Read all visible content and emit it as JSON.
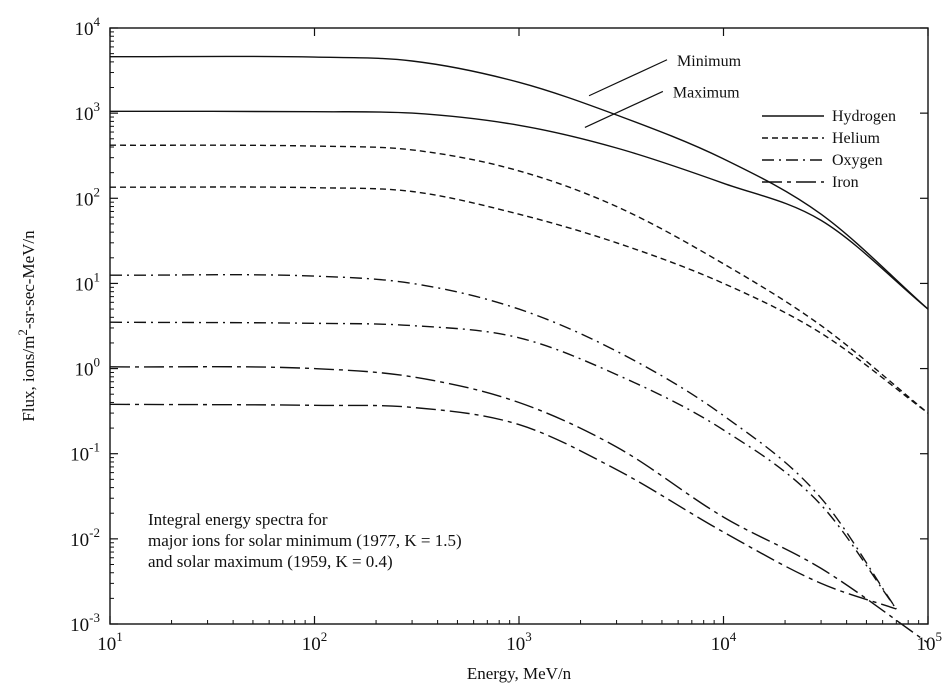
{
  "chart_data": {
    "type": "line",
    "xlabel": "Energy, MeV/n",
    "ylabel": "Flux, ions/m",
    "ylabel_sup": "2",
    "ylabel_rest": "-sr-sec-MeV/n",
    "xscale": "log",
    "yscale": "log",
    "xlim": [
      10,
      100000
    ],
    "ylim": [
      0.001,
      10000
    ],
    "grid": false,
    "xticks": [
      {
        "value": 10,
        "base": "10",
        "exp": "1"
      },
      {
        "value": 100,
        "base": "10",
        "exp": "2"
      },
      {
        "value": 1000,
        "base": "10",
        "exp": "3"
      },
      {
        "value": 10000,
        "base": "10",
        "exp": "4"
      },
      {
        "value": 100000,
        "base": "10",
        "exp": "5"
      }
    ],
    "yticks": [
      {
        "value": 0.001,
        "base": "10",
        "exp": "-3"
      },
      {
        "value": 0.01,
        "base": "10",
        "exp": "-2"
      },
      {
        "value": 0.1,
        "base": "10",
        "exp": "-1"
      },
      {
        "value": 1,
        "base": "10",
        "exp": "0"
      },
      {
        "value": 10,
        "base": "10",
        "exp": "1"
      },
      {
        "value": 100,
        "base": "10",
        "exp": "2"
      },
      {
        "value": 1000,
        "base": "10",
        "exp": "3"
      },
      {
        "value": 10000,
        "base": "10",
        "exp": "4"
      }
    ],
    "legend": {
      "placement": "top-right",
      "entries": [
        {
          "name": "Hydrogen",
          "dash": "none"
        },
        {
          "name": "Helium",
          "dash": "6,4"
        },
        {
          "name": "Oxygen",
          "dash": "12,5,2,5"
        },
        {
          "name": "Iron",
          "dash": "20,5,4,5"
        }
      ]
    },
    "series": [
      {
        "name": "Hydrogen",
        "condition": "Minimum",
        "dash": "none",
        "x": [
          10,
          100,
          300,
          1000,
          3000,
          10000,
          30000,
          100000
        ],
        "y": [
          4600,
          4550,
          4100,
          2300,
          950,
          290,
          65,
          5
        ]
      },
      {
        "name": "Hydrogen",
        "condition": "Maximum",
        "dash": "none",
        "x": [
          10,
          100,
          300,
          1000,
          3000,
          10000,
          30000,
          100000
        ],
        "y": [
          1050,
          1040,
          1000,
          720,
          390,
          150,
          55,
          5
        ]
      },
      {
        "name": "Helium",
        "condition": "Minimum",
        "dash": "6,4",
        "x": [
          10,
          100,
          300,
          1000,
          3000,
          10000,
          30000,
          100000
        ],
        "y": [
          420,
          410,
          370,
          210,
          80,
          17,
          3.2,
          0.3
        ]
      },
      {
        "name": "Helium",
        "condition": "Maximum",
        "dash": "6,4",
        "x": [
          10,
          100,
          300,
          1000,
          3000,
          10000,
          30000,
          100000
        ],
        "y": [
          135,
          133,
          120,
          65,
          30,
          10,
          2.6,
          0.3
        ]
      },
      {
        "name": "Oxygen",
        "condition": "Minimum",
        "dash": "12,5,2,5",
        "x": [
          10,
          100,
          300,
          1000,
          3000,
          10000,
          30000,
          70000
        ],
        "y": [
          12.5,
          12.2,
          10,
          5,
          1.6,
          0.28,
          0.03,
          0.0015
        ]
      },
      {
        "name": "Oxygen",
        "condition": "Maximum",
        "dash": "12,5,2,5",
        "x": [
          10,
          100,
          300,
          1000,
          3000,
          10000,
          30000,
          70000
        ],
        "y": [
          3.5,
          3.4,
          3.2,
          2.3,
          0.85,
          0.19,
          0.025,
          0.0015
        ]
      },
      {
        "name": "Iron",
        "condition": "Minimum",
        "dash": "20,5,4,5",
        "x": [
          10,
          100,
          300,
          1000,
          3000,
          10000,
          30000,
          100000
        ],
        "y": [
          1.05,
          1.0,
          0.8,
          0.4,
          0.12,
          0.018,
          0.0045,
          0.0006
        ]
      },
      {
        "name": "Iron",
        "condition": "Maximum",
        "dash": "20,5,4,5",
        "x": [
          10,
          100,
          300,
          1000,
          3000,
          10000,
          30000,
          70000
        ],
        "y": [
          0.38,
          0.37,
          0.35,
          0.22,
          0.065,
          0.012,
          0.003,
          0.0015
        ]
      }
    ],
    "callouts": [
      {
        "text": "Minimum",
        "anchor": {
          "x": 2200,
          "y": 1600
        }
      },
      {
        "text": "Maximum",
        "anchor": {
          "x": 2100,
          "y": 680
        }
      }
    ],
    "annotation": [
      "Integral energy spectra for",
      "major ions for solar minimum (1977, K = 1.5)",
      "and solar maximum (1959, K = 0.4)"
    ]
  }
}
